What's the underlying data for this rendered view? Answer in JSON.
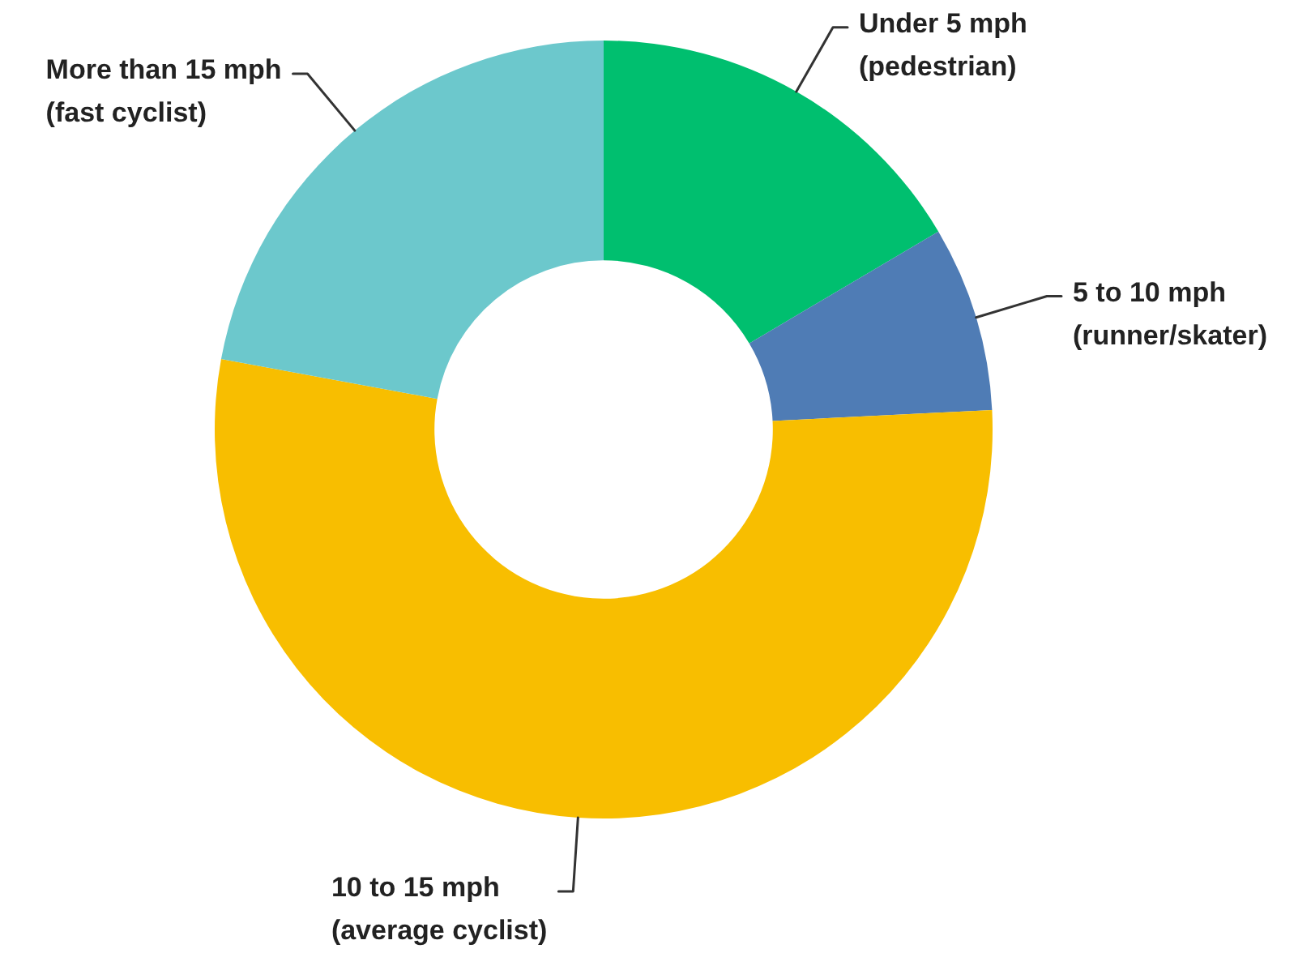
{
  "chart_data": {
    "type": "donut",
    "categories": [
      "Under 5 mph\n(pedestrian)",
      "5 to 10 mph\n(runner/skater)",
      "10 to 15 mph\n(average cyclist)",
      "More than 15 mph\n(fast cyclist)"
    ],
    "values": [
      16.5,
      7.7,
      53.7,
      22.1
    ],
    "colors": [
      "#00bf6f",
      "#4f7cb5",
      "#f8be00",
      "#6cc8cc"
    ]
  }
}
